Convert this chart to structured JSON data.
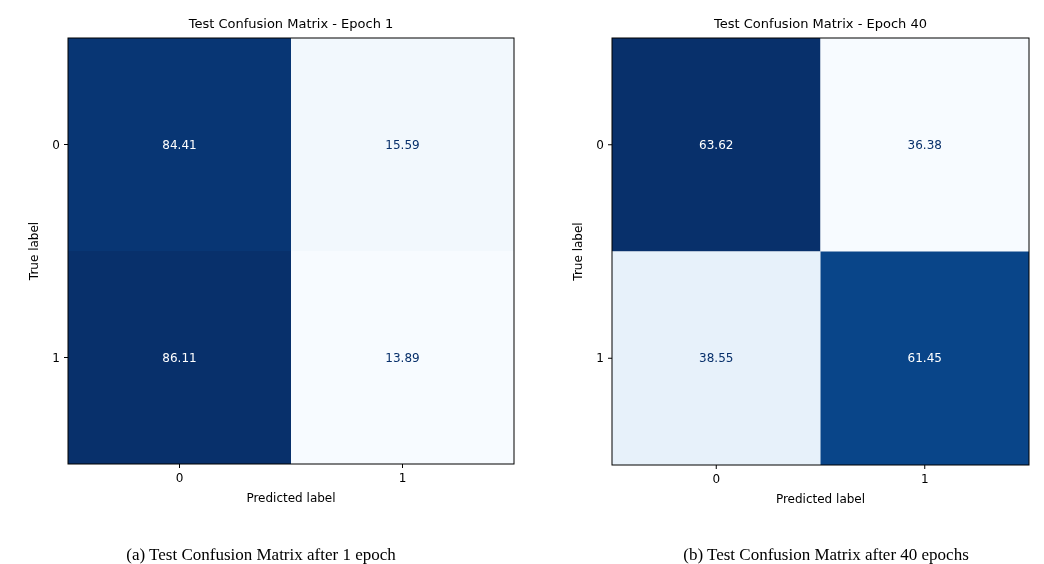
{
  "chart_data": [
    {
      "type": "heatmap",
      "title": "Test Confusion Matrix - Epoch 1",
      "xlabel": "Predicted label",
      "ylabel": "True label",
      "categories": [
        "0",
        "1"
      ],
      "y_categories": [
        "0",
        "1"
      ],
      "cells": [
        [
          84.41,
          15.59
        ],
        [
          86.11,
          13.89
        ]
      ],
      "data_labels": true,
      "annotations": [
        "(a) Test Confusion Matrix after 1 epoch"
      ]
    },
    {
      "type": "heatmap",
      "title": "Test Confusion Matrix - Epoch 40",
      "xlabel": "Predicted label",
      "ylabel": "True label",
      "categories": [
        "0",
        "1"
      ],
      "y_categories": [
        "0",
        "1"
      ],
      "cells": [
        [
          63.62,
          36.38
        ],
        [
          38.55,
          61.45
        ]
      ],
      "data_labels": true,
      "annotations": [
        "(b) Test Confusion Matrix after 40 epochs"
      ]
    }
  ]
}
